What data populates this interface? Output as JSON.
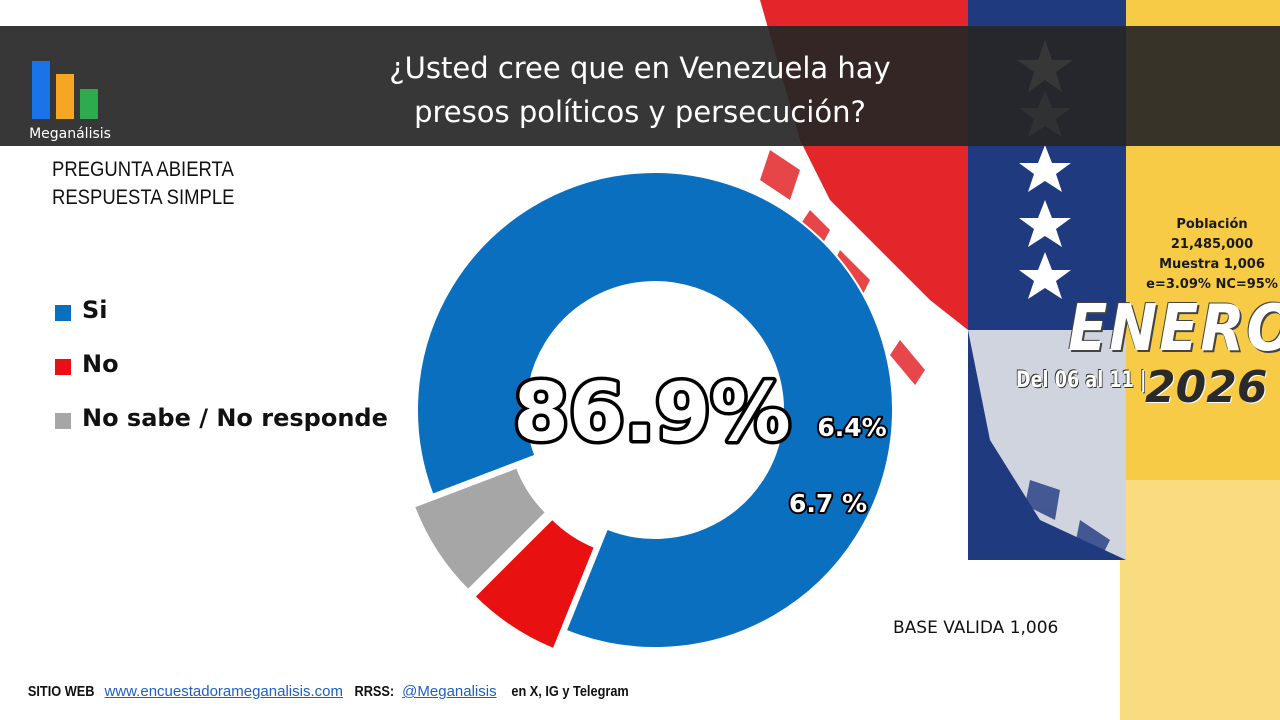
{
  "brand": {
    "name": "Meganálisis",
    "colors": [
      "#1a73e8",
      "#f5a623",
      "#2eaa4f"
    ]
  },
  "header": {
    "title_line1": "¿Usted cree que en Venezuela hay",
    "title_line2": "presos políticos y persecución?"
  },
  "subtitle": {
    "line1": "PREGUNTA  ABIERTA",
    "line2": "RESPUESTA SIMPLE"
  },
  "chart_data": {
    "type": "pie",
    "title": "¿Usted cree que en Venezuela hay presos políticos y persecución?",
    "categories": [
      "Si",
      "No",
      "No sabe / No responde"
    ],
    "values": [
      86.9,
      6.4,
      6.7
    ],
    "labels": [
      "86.9%",
      "6.4%",
      "6.7 %"
    ],
    "colors": [
      "#0b6fc0",
      "#e81010",
      "#a6a6a6"
    ],
    "legend": "left",
    "donut": true
  },
  "stats": {
    "line1": "Población",
    "line2": "21,485,000",
    "line3": "Muestra 1,006",
    "line4": "e=3.09%  NC=95%"
  },
  "period": {
    "month": "ENERO",
    "dates": "Del 06 al 11 |",
    "year": "2026"
  },
  "base": "BASE VALIDA 1,006",
  "footer": {
    "site_label": "SITIO WEB",
    "site_url": "www.encuestadorameganalisis.com",
    "rrss_label": "RRSS:",
    "handle": "@Meganalisis",
    "networks": "en X, IG y Telegram"
  }
}
